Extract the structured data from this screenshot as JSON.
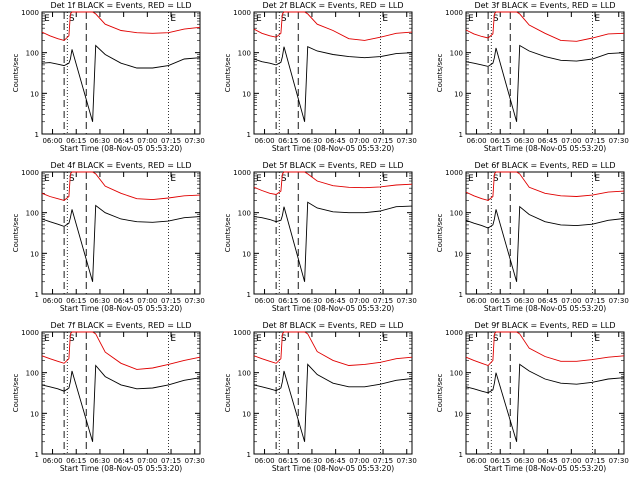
{
  "chart_data": {
    "type": "line",
    "layout": "3x3 grid",
    "shared": {
      "xlabel": "Start Time (08-Nov-05 05:53:20)",
      "ylabel": "Counts/sec",
      "xticks": [
        "06:00",
        "06:15",
        "06:30",
        "06:45",
        "07:00",
        "07:15",
        "07:30"
      ],
      "xlim_minutes_after_start": [
        0,
        100
      ],
      "yscale": "log",
      "ylim": [
        1,
        1000
      ],
      "yticks": [
        "1",
        "10",
        "100",
        "1000"
      ],
      "grid": false,
      "legend": "none",
      "series_colors": {
        "Events": "#000000",
        "LLD": "#e00000"
      }
    },
    "panels": [
      {
        "title": "Det 1f BLACK = Events, RED = LLD",
        "markers": {
          "E_left": "E",
          "S": "S",
          "E_right": "E"
        },
        "events_black": {
          "x_minutes": [
            0,
            5,
            10,
            14,
            17,
            18,
            19,
            32,
            34,
            40,
            50,
            60,
            70,
            80,
            90,
            100
          ],
          "y": [
            55,
            57,
            52,
            48,
            55,
            70,
            120,
            2,
            150,
            90,
            55,
            42,
            42,
            48,
            70,
            75
          ]
        },
        "lld_red": {
          "x_minutes": [
            0,
            5,
            10,
            14,
            17,
            18,
            19,
            32,
            34,
            40,
            50,
            60,
            70,
            80,
            90,
            100
          ],
          "y": [
            320,
            260,
            220,
            200,
            260,
            900,
            1000,
            1000,
            900,
            500,
            350,
            310,
            300,
            310,
            380,
            420
          ]
        }
      },
      {
        "title": "Det 2f BLACK = Events, RED = LLD",
        "markers": {
          "E_left": "E",
          "S": "S",
          "E_right": "E"
        },
        "events_black": {
          "x_minutes": [
            0,
            5,
            10,
            14,
            17,
            18,
            19,
            32,
            34,
            40,
            50,
            60,
            70,
            80,
            90,
            100
          ],
          "y": [
            70,
            60,
            55,
            50,
            58,
            80,
            140,
            2,
            140,
            110,
            90,
            80,
            75,
            80,
            95,
            100
          ]
        },
        "lld_red": {
          "x_minutes": [
            0,
            5,
            10,
            14,
            17,
            18,
            19,
            32,
            34,
            40,
            50,
            60,
            70,
            80,
            90,
            100
          ],
          "y": [
            380,
            300,
            260,
            240,
            300,
            900,
            1000,
            1000,
            900,
            500,
            350,
            220,
            200,
            240,
            300,
            320
          ]
        }
      },
      {
        "title": "Det 3f BLACK = Events, RED = LLD",
        "markers": {
          "E_left": "E",
          "S": "S",
          "E_right": "E"
        },
        "events_black": {
          "x_minutes": [
            0,
            5,
            10,
            14,
            17,
            18,
            19,
            32,
            34,
            40,
            50,
            60,
            70,
            80,
            90,
            100
          ],
          "y": [
            60,
            55,
            50,
            46,
            55,
            75,
            130,
            2,
            150,
            110,
            80,
            65,
            62,
            70,
            95,
            100
          ]
        },
        "lld_red": {
          "x_minutes": [
            0,
            5,
            10,
            14,
            17,
            18,
            19,
            32,
            34,
            40,
            50,
            60,
            70,
            80,
            90,
            100
          ],
          "y": [
            360,
            290,
            250,
            230,
            290,
            900,
            1000,
            1000,
            900,
            480,
            300,
            200,
            190,
            230,
            290,
            300
          ]
        }
      },
      {
        "title": "Det 4f BLACK = Events, RED = LLD",
        "markers": {
          "E_left": "E",
          "S": "S",
          "E_right": "E"
        },
        "events_black": {
          "x_minutes": [
            0,
            5,
            10,
            14,
            17,
            18,
            19,
            32,
            34,
            40,
            50,
            60,
            70,
            80,
            90,
            100
          ],
          "y": [
            70,
            60,
            52,
            46,
            55,
            75,
            120,
            2,
            150,
            100,
            70,
            60,
            58,
            62,
            75,
            80
          ]
        },
        "lld_red": {
          "x_minutes": [
            0,
            5,
            10,
            14,
            17,
            18,
            19,
            32,
            34,
            40,
            50,
            60,
            70,
            80,
            90,
            100
          ],
          "y": [
            300,
            250,
            220,
            200,
            250,
            900,
            1000,
            1000,
            900,
            450,
            300,
            220,
            210,
            230,
            260,
            270
          ]
        }
      },
      {
        "title": "Det 5f BLACK = Events, RED = LLD",
        "markers": {
          "E_left": "E",
          "S": "S",
          "E_right": "E"
        },
        "events_black": {
          "x_minutes": [
            0,
            5,
            10,
            14,
            17,
            18,
            19,
            32,
            34,
            40,
            50,
            60,
            70,
            80,
            90,
            100
          ],
          "y": [
            80,
            75,
            68,
            60,
            65,
            85,
            140,
            2,
            180,
            130,
            105,
            100,
            100,
            110,
            140,
            145
          ]
        },
        "lld_red": {
          "x_minutes": [
            0,
            5,
            10,
            14,
            17,
            18,
            19,
            32,
            34,
            40,
            50,
            60,
            70,
            80,
            90,
            100
          ],
          "y": [
            420,
            350,
            300,
            280,
            340,
            900,
            1000,
            1000,
            900,
            600,
            460,
            420,
            410,
            430,
            480,
            500
          ]
        }
      },
      {
        "title": "Det 6f BLACK = Events, RED = LLD",
        "markers": {
          "E_left": "E",
          "S": "S",
          "E_right": "E"
        },
        "events_black": {
          "x_minutes": [
            0,
            5,
            10,
            14,
            17,
            18,
            19,
            32,
            34,
            40,
            50,
            60,
            70,
            80,
            90,
            100
          ],
          "y": [
            65,
            55,
            48,
            42,
            50,
            70,
            120,
            2,
            140,
            90,
            60,
            50,
            48,
            52,
            65,
            72
          ]
        },
        "lld_red": {
          "x_minutes": [
            0,
            5,
            10,
            14,
            17,
            18,
            19,
            32,
            34,
            40,
            50,
            60,
            70,
            80,
            90,
            100
          ],
          "y": [
            320,
            260,
            220,
            200,
            250,
            900,
            1000,
            1000,
            900,
            420,
            300,
            260,
            250,
            270,
            320,
            340
          ]
        }
      },
      {
        "title": "Det 7f BLACK = Events, RED = LLD",
        "markers": {
          "E_left": "E",
          "S": "S",
          "E_right": "E"
        },
        "events_black": {
          "x_minutes": [
            0,
            5,
            10,
            14,
            17,
            18,
            19,
            32,
            34,
            40,
            50,
            60,
            70,
            80,
            90,
            100
          ],
          "y": [
            50,
            45,
            40,
            35,
            42,
            60,
            110,
            2,
            150,
            80,
            50,
            40,
            42,
            50,
            65,
            75
          ]
        },
        "lld_red": {
          "x_minutes": [
            0,
            5,
            10,
            14,
            17,
            18,
            19,
            32,
            34,
            40,
            50,
            60,
            70,
            80,
            90,
            100
          ],
          "y": [
            260,
            220,
            190,
            170,
            220,
            900,
            1000,
            1000,
            900,
            320,
            170,
            120,
            130,
            160,
            200,
            240
          ]
        }
      },
      {
        "title": "Det 8f BLACK = Events, RED = LLD",
        "markers": {
          "E_left": "E",
          "S": "S",
          "E_right": "E"
        },
        "events_black": {
          "x_minutes": [
            0,
            5,
            10,
            14,
            17,
            18,
            19,
            32,
            34,
            40,
            50,
            60,
            70,
            80,
            90,
            100
          ],
          "y": [
            50,
            45,
            40,
            36,
            42,
            60,
            110,
            2,
            160,
            90,
            55,
            45,
            45,
            52,
            65,
            72
          ]
        },
        "lld_red": {
          "x_minutes": [
            0,
            5,
            10,
            14,
            17,
            18,
            19,
            32,
            34,
            40,
            50,
            60,
            70,
            80,
            90,
            100
          ],
          "y": [
            260,
            220,
            190,
            170,
            220,
            900,
            1000,
            1000,
            900,
            330,
            200,
            150,
            160,
            180,
            220,
            240
          ]
        }
      },
      {
        "title": "Det 9f BLACK = Events, RED = LLD",
        "markers": {
          "E_left": "E",
          "S": "S",
          "E_right": "E"
        },
        "events_black": {
          "x_minutes": [
            0,
            5,
            10,
            14,
            17,
            18,
            19,
            32,
            34,
            40,
            50,
            60,
            70,
            80,
            90,
            100
          ],
          "y": [
            45,
            40,
            35,
            32,
            38,
            55,
            100,
            2,
            160,
            110,
            70,
            55,
            52,
            58,
            70,
            75
          ]
        },
        "lld_red": {
          "x_minutes": [
            0,
            5,
            10,
            14,
            17,
            18,
            19,
            32,
            34,
            40,
            50,
            60,
            70,
            80,
            90,
            100
          ],
          "y": [
            240,
            200,
            170,
            150,
            200,
            900,
            1000,
            1000,
            900,
            400,
            250,
            190,
            190,
            210,
            240,
            260
          ]
        }
      }
    ]
  }
}
